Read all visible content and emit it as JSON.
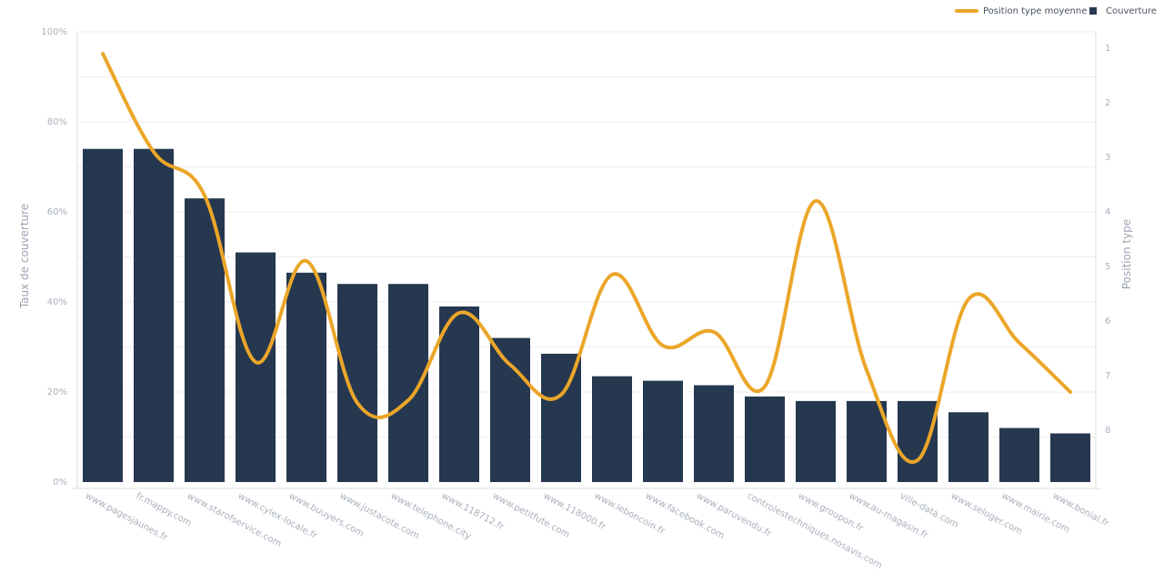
{
  "colors": {
    "bar": "#26384f",
    "line": "#eba629",
    "grid": "#ececec",
    "axis_text": "#a9b0bc",
    "axis_title": "#9aa3b2"
  },
  "legend": {
    "line_label": "Position type moyenne",
    "bar_label": "Couverture",
    "placement": "top-right"
  },
  "chart_data": {
    "type": "bar",
    "title": "",
    "categories": [
      "www.pagesjaunes.fr",
      "fr.mappy.com",
      "www.starofservice.com",
      "www.cylex-locale.fr",
      "www.buuyers.com",
      "www.justacote.com",
      "www.telephone.city",
      "www.118712.fr",
      "www.petitfute.com",
      "www.118000.fr",
      "www.leboncoin.fr",
      "www.facebook.com",
      "www.paruvendu.fr",
      "controlestechniques.nosavis.com",
      "www.groupon.fr",
      "www.au-magasin.fr",
      "ville-data.com",
      "www.seloger.com",
      "www.mairie.com",
      "www.bonial.fr"
    ],
    "series": [
      {
        "name": "Couverture",
        "type": "bar",
        "axis": "left",
        "values": [
          74,
          74,
          63,
          51,
          46.5,
          44,
          44,
          39,
          32,
          28.5,
          23.5,
          22.5,
          21.5,
          19,
          18,
          18,
          18,
          15.5,
          12,
          10.8
        ]
      },
      {
        "name": "Position type moyenne",
        "type": "line",
        "axis": "right",
        "values": [
          1.1,
          2.9,
          3.7,
          6.75,
          4.9,
          7.5,
          7.45,
          5.85,
          6.8,
          7.35,
          5.15,
          6.45,
          6.2,
          7.2,
          3.8,
          6.9,
          8.55,
          5.6,
          6.4,
          7.3
        ]
      }
    ],
    "y_left": {
      "label": "Taux de couverture",
      "range": [
        0,
        100
      ],
      "ticks": [
        "0%",
        "20%",
        "40%",
        "60%",
        "80%",
        "100%"
      ],
      "tick_values": [
        0,
        20,
        40,
        60,
        80,
        100
      ]
    },
    "y_right": {
      "label": "Position type",
      "range": [
        0.7,
        8.95
      ],
      "reversed": true,
      "ticks": [
        "1",
        "2",
        "3",
        "4",
        "5",
        "6",
        "7",
        "8"
      ],
      "tick_values": [
        1,
        2,
        3,
        4,
        5,
        6,
        7,
        8
      ]
    },
    "grid": true
  }
}
